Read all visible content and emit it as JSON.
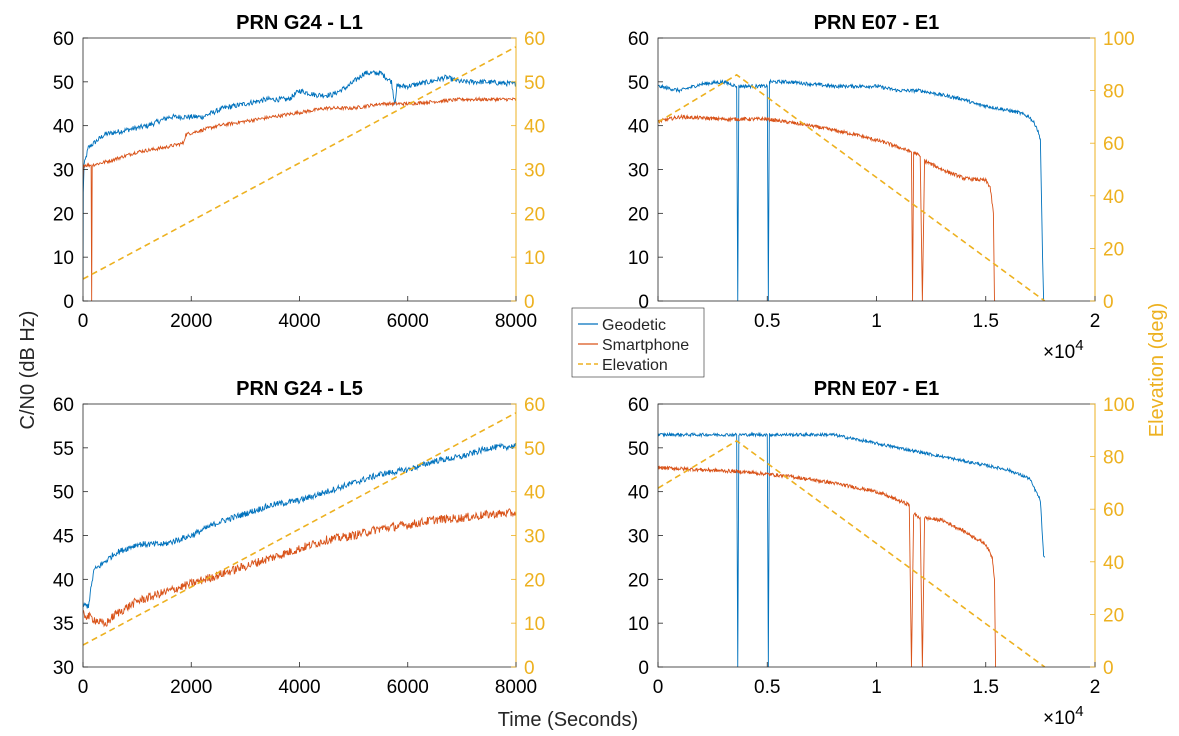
{
  "figure": {
    "ylabel_left": "C/N0 (dB Hz)",
    "ylabel_right": "Elevation (deg)",
    "xlabel": "Time (Seconds)",
    "legend": [
      "Geodetic",
      "Smartphone",
      "Elevation"
    ],
    "legend_placement": "center",
    "colors": {
      "geodetic": "#0072BD",
      "smartphone": "#D95319",
      "elevation": "#EDB120",
      "axes": "#262626"
    }
  },
  "chart_data": [
    {
      "type": "line",
      "title": "PRN G24 - L1",
      "xlim": [
        0,
        8000
      ],
      "ylim": [
        0,
        60
      ],
      "y2lim": [
        0,
        60
      ],
      "x_ticks": [
        "0",
        "2000",
        "4000",
        "6000",
        "8000"
      ],
      "y_ticks": [
        "0",
        "10",
        "20",
        "30",
        "40",
        "50",
        "60"
      ],
      "y2_ticks": [
        "0",
        "10",
        "20",
        "30",
        "40",
        "50",
        "60"
      ],
      "x_exponent": "",
      "series": [
        {
          "name": "Geodetic",
          "axis": "left",
          "noise": 0.6,
          "points": [
            [
              0,
              5
            ],
            [
              5,
              25
            ],
            [
              20,
              31
            ],
            [
              100,
              35
            ],
            [
              400,
              38
            ],
            [
              800,
              39
            ],
            [
              1200,
              40
            ],
            [
              1600,
              42
            ],
            [
              1900,
              42
            ],
            [
              2200,
              42
            ],
            [
              2600,
              44
            ],
            [
              3000,
              45
            ],
            [
              3400,
              46
            ],
            [
              3800,
              46
            ],
            [
              4000,
              48
            ],
            [
              4300,
              47
            ],
            [
              4600,
              47
            ],
            [
              4900,
              49
            ],
            [
              5200,
              52
            ],
            [
              5500,
              52
            ],
            [
              5700,
              50
            ],
            [
              5760,
              45
            ],
            [
              5800,
              49
            ],
            [
              6000,
              49
            ],
            [
              6400,
              50
            ],
            [
              6700,
              51
            ],
            [
              7000,
              50
            ],
            [
              7400,
              50
            ],
            [
              8000,
              49.5
            ]
          ]
        },
        {
          "name": "Smartphone",
          "axis": "left",
          "noise": 0.4,
          "points": [
            [
              0,
              28
            ],
            [
              10,
              31
            ],
            [
              150,
              31
            ],
            [
              160,
              0
            ],
            [
              170,
              31
            ],
            [
              500,
              32
            ],
            [
              1000,
              34
            ],
            [
              1500,
              35
            ],
            [
              1850,
              36
            ],
            [
              1900,
              38
            ],
            [
              2500,
              40
            ],
            [
              3000,
              41
            ],
            [
              3500,
              42
            ],
            [
              4000,
              43
            ],
            [
              4500,
              44
            ],
            [
              5000,
              44
            ],
            [
              5500,
              45
            ],
            [
              6000,
              45
            ],
            [
              6500,
              45.5
            ],
            [
              7000,
              46
            ],
            [
              8000,
              46
            ]
          ]
        },
        {
          "name": "Elevation",
          "axis": "right",
          "points": [
            [
              0,
              5
            ],
            [
              8000,
              58
            ]
          ]
        }
      ]
    },
    {
      "type": "line",
      "title": "PRN E07 - E1",
      "xlim": [
        0,
        2
      ],
      "ylim": [
        0,
        60
      ],
      "y2lim": [
        0,
        100
      ],
      "x_ticks": [
        "0",
        "0.5",
        "1",
        "1.5",
        "2"
      ],
      "y_ticks": [
        "0",
        "10",
        "20",
        "30",
        "40",
        "50",
        "60"
      ],
      "y2_ticks": [
        "0",
        "20",
        "40",
        "60",
        "80",
        "100"
      ],
      "x_exponent": "×10^4",
      "series": [
        {
          "name": "Geodetic",
          "axis": "left",
          "noise": 0.4,
          "points": [
            [
              0,
              49
            ],
            [
              0.1,
              48
            ],
            [
              0.2,
              49.5
            ],
            [
              0.3,
              50
            ],
            [
              0.36,
              49
            ],
            [
              0.365,
              0
            ],
            [
              0.37,
              49
            ],
            [
              0.5,
              49
            ],
            [
              0.505,
              0
            ],
            [
              0.51,
              50
            ],
            [
              0.6,
              50
            ],
            [
              0.8,
              49
            ],
            [
              1,
              49
            ],
            [
              1.1,
              48
            ],
            [
              1.2,
              48
            ],
            [
              1.3,
              47
            ],
            [
              1.4,
              46
            ],
            [
              1.45,
              45
            ],
            [
              1.55,
              44
            ],
            [
              1.65,
              43
            ],
            [
              1.7,
              42
            ],
            [
              1.73,
              40
            ],
            [
              1.75,
              37
            ],
            [
              1.76,
              10
            ],
            [
              1.765,
              0
            ],
            [
              1.77,
              0
            ]
          ]
        },
        {
          "name": "Smartphone",
          "axis": "left",
          "noise": 0.4,
          "points": [
            [
              0,
              41
            ],
            [
              0.1,
              42
            ],
            [
              0.3,
              41.5
            ],
            [
              0.5,
              41.5
            ],
            [
              0.7,
              40
            ],
            [
              0.9,
              38
            ],
            [
              1.05,
              36
            ],
            [
              1.16,
              34
            ],
            [
              1.165,
              0
            ],
            [
              1.17,
              34
            ],
            [
              1.2,
              33
            ],
            [
              1.21,
              0
            ],
            [
              1.22,
              32
            ],
            [
              1.3,
              30
            ],
            [
              1.4,
              28
            ],
            [
              1.5,
              27.5
            ],
            [
              1.52,
              26
            ],
            [
              1.535,
              20
            ],
            [
              1.54,
              0
            ],
            [
              1.545,
              0
            ]
          ]
        },
        {
          "name": "Elevation",
          "axis": "right",
          "points": [
            [
              0,
              68
            ],
            [
              0.36,
              86
            ],
            [
              1.77,
              0
            ]
          ]
        }
      ]
    },
    {
      "type": "line",
      "title": "PRN G24 - L5",
      "xlim": [
        0,
        8000
      ],
      "ylim": [
        30,
        60
      ],
      "y2lim": [
        0,
        60
      ],
      "x_ticks": [
        "0",
        "2000",
        "4000",
        "6000",
        "8000"
      ],
      "y_ticks": [
        "30",
        "35",
        "40",
        "45",
        "50",
        "55",
        "60"
      ],
      "y2_ticks": [
        "0",
        "10",
        "20",
        "30",
        "40",
        "50",
        "60"
      ],
      "x_exponent": "",
      "series": [
        {
          "name": "Geodetic",
          "axis": "left",
          "noise": 0.35,
          "points": [
            [
              0,
              37
            ],
            [
              100,
              37
            ],
            [
              200,
              41
            ],
            [
              600,
              43
            ],
            [
              1000,
              44
            ],
            [
              1500,
              44
            ],
            [
              2000,
              45
            ],
            [
              2500,
              46.5
            ],
            [
              3000,
              47.5
            ],
            [
              3500,
              48.5
            ],
            [
              4000,
              49
            ],
            [
              4500,
              50
            ],
            [
              5000,
              51
            ],
            [
              5500,
              52
            ],
            [
              6000,
              52.5
            ],
            [
              6500,
              53.5
            ],
            [
              7000,
              54
            ],
            [
              7500,
              55
            ],
            [
              8000,
              55.2
            ]
          ]
        },
        {
          "name": "Smartphone",
          "axis": "left",
          "noise": 0.5,
          "points": [
            [
              0,
              36
            ],
            [
              200,
              35.5
            ],
            [
              400,
              34.8
            ],
            [
              600,
              36
            ],
            [
              1000,
              37.5
            ],
            [
              1500,
              38.5
            ],
            [
              2000,
              39.5
            ],
            [
              2500,
              40.5
            ],
            [
              3000,
              41.5
            ],
            [
              3500,
              42.5
            ],
            [
              4000,
              43.5
            ],
            [
              4500,
              44.5
            ],
            [
              5000,
              45
            ],
            [
              5500,
              45.8
            ],
            [
              6000,
              46.2
            ],
            [
              6500,
              46.8
            ],
            [
              7000,
              47
            ],
            [
              7500,
              47.4
            ],
            [
              8000,
              47.6
            ]
          ]
        },
        {
          "name": "Elevation",
          "axis": "right",
          "points": [
            [
              0,
              5
            ],
            [
              8000,
              58
            ]
          ]
        }
      ]
    },
    {
      "type": "line",
      "title": "PRN E07 - E1",
      "xlim": [
        0,
        2
      ],
      "ylim": [
        0,
        60
      ],
      "y2lim": [
        0,
        100
      ],
      "x_ticks": [
        "0",
        "0.5",
        "1",
        "1.5",
        "2"
      ],
      "y_ticks": [
        "0",
        "10",
        "20",
        "30",
        "40",
        "50",
        "60"
      ],
      "y2_ticks": [
        "0",
        "20",
        "40",
        "60",
        "80",
        "100"
      ],
      "x_exponent": "×10^4",
      "series": [
        {
          "name": "Geodetic",
          "axis": "left",
          "noise": 0.35,
          "points": [
            [
              0,
              53
            ],
            [
              0.36,
              53
            ],
            [
              0.365,
              0
            ],
            [
              0.37,
              53
            ],
            [
              0.5,
              53
            ],
            [
              0.505,
              0
            ],
            [
              0.51,
              53
            ],
            [
              0.8,
              53
            ],
            [
              1,
              51
            ],
            [
              1.2,
              49
            ],
            [
              1.4,
              47
            ],
            [
              1.5,
              46
            ],
            [
              1.6,
              45
            ],
            [
              1.7,
              43
            ],
            [
              1.75,
              38
            ],
            [
              1.765,
              25
            ],
            [
              1.77,
              25
            ]
          ]
        },
        {
          "name": "Smartphone",
          "axis": "left",
          "noise": 0.4,
          "points": [
            [
              0,
              45.5
            ],
            [
              0.2,
              45
            ],
            [
              0.4,
              44.5
            ],
            [
              0.6,
              43.5
            ],
            [
              0.8,
              42
            ],
            [
              1,
              40
            ],
            [
              1.15,
              37
            ],
            [
              1.16,
              0
            ],
            [
              1.17,
              35
            ],
            [
              1.2,
              34
            ],
            [
              1.21,
              0
            ],
            [
              1.22,
              34
            ],
            [
              1.3,
              33.5
            ],
            [
              1.4,
              31
            ],
            [
              1.5,
              28
            ],
            [
              1.53,
              25
            ],
            [
              1.54,
              20
            ],
            [
              1.545,
              0
            ]
          ]
        },
        {
          "name": "Elevation",
          "axis": "right",
          "points": [
            [
              0,
              68
            ],
            [
              0.36,
              86
            ],
            [
              1.77,
              0
            ]
          ]
        }
      ]
    }
  ]
}
